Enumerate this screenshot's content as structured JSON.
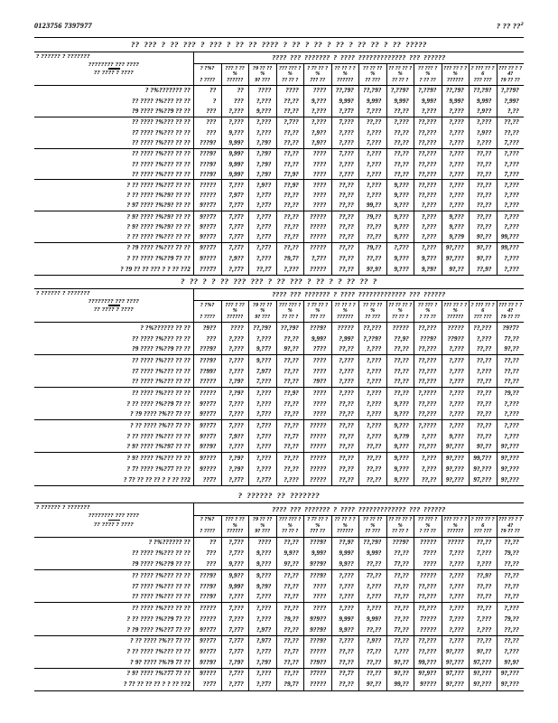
{
  "page": {
    "doc_id": "0123756 7397977",
    "page_label": "? ?? ??",
    "page_sup": "2"
  },
  "header": {
    "corner_l1": "? ?????? ? ???????",
    "corner_l2": "???????? ??? ????",
    "corner_l3": "?? ???? ? ????",
    "span": "???? ??? ??????? ? ???? ????????????? ??? ??????",
    "columns": [
      {
        "l1": "? ?%?",
        "l2": "? ????"
      },
      {
        "l1": "??? ? ?? %",
        "l2": "??????"
      },
      {
        "l1": "?9 ?? ?? %",
        "l2": "9? ???"
      },
      {
        "l1": "??? ??? ?%",
        "l2": "?? ?? ?"
      },
      {
        "l1": "? 7? ?? ?%",
        "l2": "7?? ??"
      },
      {
        "l1": "?? ?? ? ?%",
        "l2": "??????"
      },
      {
        "l1": "?? ?? ?? %",
        "l2": "?? ???"
      },
      {
        "l1": "?? ?? ?? ?%",
        "l2": "?? ?? ?"
      },
      {
        "l1": "?? ??? ? %",
        "l2": "? ?? ??"
      },
      {
        "l1": "??? ?? ? ?%",
        "l2": "??????"
      },
      {
        "l1": "? ??? ?? ? 6",
        "l2": "??? ???"
      },
      {
        "l1": "??? ?? ? ? 4?",
        "l2": "?9 ?? ??"
      }
    ]
  },
  "tables": [
    {
      "title": "?? ??? ? ?? ??? ? ??? ? ?? ?? ???? ? ?? ? ?? ? ?? ? ?? ?? ? ?? ?????",
      "rules_after": [
        3,
        6,
        9,
        12,
        15
      ],
      "rows": [
        {
          "label": "? ?%??????? ??",
          "values": [
            "??",
            "??",
            "????",
            "????",
            "????",
            "??,?9?",
            "??,?9?",
            "?,??9?",
            "?,??9?",
            "??,?9?",
            "??,?9?",
            "?,??9?"
          ]
        },
        {
          "label": "?? ???? ?%??? ?? ??",
          "values": [
            "?",
            "???",
            "?,???",
            "??,??",
            "9,???",
            "9,99?",
            "9,99?",
            "9,99?",
            "9,99?",
            "9,99?",
            "9,99?",
            "?,99?"
          ]
        },
        {
          "label": "?9 ???? ?%??9 ?? ??",
          "values": [
            "???",
            "?,???",
            "9,???",
            "??,??",
            "?,???",
            "?,?7?",
            "7,???",
            "??,??",
            "?,???",
            "?,???",
            "?,9??",
            "?,??"
          ]
        },
        {
          "label": "?? ???? ?%??? ?? ??",
          "values": [
            "???",
            "?,???",
            "?,???",
            "?,7??",
            "?,???",
            "7,???",
            "??,??",
            "?,???",
            "??,???",
            "?,???",
            "?,???",
            "??,??"
          ]
        },
        {
          "label": "?7 ???? ?%??? ?? ??",
          "values": [
            "???",
            "9,???",
            "?,???",
            "??,??",
            "?,9??",
            "?,???",
            "?,???",
            "??,??",
            "??,???",
            "?,???",
            "?,9??",
            "??,??"
          ]
        },
        {
          "label": "?? ???? ?%??? ?? ??",
          "values": [
            "???9?",
            "9,99?",
            "?,?9?",
            "??,??",
            "?,9??",
            "?,???",
            "7,???",
            "??,??",
            "??,???",
            "?,???",
            "?,???",
            "7,???"
          ]
        },
        {
          "label": "?? ???? ?%??? ?? ??",
          "values": [
            "???9?",
            "9,99?",
            "?,?9?",
            "??,??",
            "????",
            "7,???",
            "?,???",
            "??,??",
            "??,???",
            "?,???",
            "??,??",
            "?,???"
          ]
        },
        {
          "label": "?? ???? ?%??? ?? ??",
          "values": [
            "???9?",
            "9,99?",
            "?,?9?",
            "??,??",
            "????",
            "?,???",
            "?,???",
            "??,??",
            "??,???",
            "?,???",
            "??,??",
            "?,???"
          ]
        },
        {
          "label": "?? ???? ?%??? ?? ??",
          "values": [
            "???9?",
            "9,99?",
            "?,?9?",
            "7?,9?",
            "????",
            "?,???",
            "?,???",
            "??,??",
            "??,???",
            "?,???",
            "??,??",
            "7,???"
          ]
        },
        {
          "label": "? ?? ???? ?%??7 ?? ??",
          "values": [
            "?????",
            "7,???",
            "?,9??",
            "??,9?",
            "????",
            "??,??",
            "?,???",
            "9,???",
            "??,???",
            "?,???",
            "??,??",
            "?,???"
          ]
        },
        {
          "label": "? ?? ???? ?%?9? ?? ??",
          "values": [
            "?????",
            "7,97?",
            "?,?7?",
            "??,??",
            "????",
            "??,??",
            "?,???",
            "9,???",
            "??,???",
            "?,???",
            "??,??",
            "?,???"
          ]
        },
        {
          "label": "? 97 ???? ?%?9? ?? ??",
          "values": [
            "9??7?",
            "7,?7?",
            "?,?7?",
            "??,??",
            "????",
            "??,??",
            "99,??",
            "9,???",
            "?,???",
            "?,???",
            "??,??",
            "?,???"
          ]
        },
        {
          "label": "? 9? ???? ?%?9? ?? ??",
          "values": [
            "9??7?",
            "7,?7?",
            "?,?7?",
            "??,??",
            "?????",
            "??,??",
            "?9,??",
            "9,???",
            "?,???",
            "9,???",
            "??,??",
            "?,???"
          ]
        },
        {
          "label": "? 9? ???? ?%?9? ?? ??",
          "values": [
            "9??7?",
            "7,?7?",
            "?,?7?",
            "??,??",
            "?????",
            "??,??",
            "??,??",
            "9,???",
            "?,???",
            "9,???",
            "??,??",
            "?,???"
          ]
        },
        {
          "label": "? ?? ???? ?%??? ?? ??",
          "values": [
            "9??7?",
            "7,?7?",
            "?,?7?",
            "??,??",
            "?????",
            "??,??",
            "??,??",
            "9,???",
            "?,???",
            "9,??9",
            "9?,??",
            "99,???"
          ]
        },
        {
          "label": "? ?9 ???? ?%??? 7? ??",
          "values": [
            "9??7?",
            "7,?7?",
            "?,?7?",
            "??,??",
            "?????",
            "??,??",
            "?9,??",
            "?,7??",
            "?,???",
            "9?,???",
            "9?,??",
            "99,???"
          ]
        },
        {
          "label": "? ?? ???? ?%??9 7? ??",
          "values": [
            "9????",
            "?,9??",
            "?,???",
            "?9,7?",
            "?,7??",
            "??,??",
            "??,??",
            "9,???",
            "9,7??",
            "9?,???",
            "9?,??",
            "?,???"
          ]
        },
        {
          "label": "? ?9 ?? ?? ??? ? ? ?? ??2",
          "values": [
            "???7?",
            "?,?7?",
            "??,?7",
            "?,???",
            "?????",
            "??,??",
            "9?,9?",
            "9,???",
            "9,?9?",
            "9?,??",
            "??,9?",
            "?,???"
          ]
        }
      ]
    },
    {
      "title": "? ?? ? ? ?? ??? ??? ? ?? ??? ? ?? ? ? ?? ?? ?",
      "rules_after": [
        3,
        6,
        9,
        12
      ],
      "rows": [
        {
          "label": "? ?%?????? ?? ??",
          "values": [
            "?9??",
            "????",
            "??,?9?",
            "??,?9?",
            "???9?",
            "?????",
            "??,???",
            "?????",
            "??,???",
            "?????",
            "??,???",
            "?9?7?"
          ]
        },
        {
          "label": "?? ???? ?%??? ?? ??",
          "values": [
            "???",
            "?,???",
            "?,???",
            "??,??",
            "9,99?",
            "?,99?",
            "?,??9?",
            "??,9?",
            "???9?",
            "??9??",
            "?,???",
            "7?,??"
          ]
        },
        {
          "label": "?9 ???? ?%??9 ?? ??",
          "values": [
            "???9?",
            "?,???",
            "9,?7?",
            "9?,??",
            "?7??",
            "??,??",
            "?,???",
            "??,??",
            "??,???",
            "?,???",
            "??,??",
            "9?,??"
          ]
        },
        {
          "label": "?? ???? ?%??? ?? ??",
          "values": [
            "???9?",
            "?,???",
            "9,???",
            "??,??",
            "????",
            "?,???",
            "?,???",
            "??,??",
            "??,???",
            "?,???",
            "??,??",
            "??,??"
          ]
        },
        {
          "label": "?7 ???? ?%??? ?? ??",
          "values": [
            "??99?",
            "?,???",
            "7,97?",
            "??,??",
            "????",
            "?,???",
            "?,???",
            "??,??",
            "??,???",
            "?,???",
            "?,???",
            "??,??"
          ]
        },
        {
          "label": "?? ???? ?%??? ?? ??",
          "values": [
            "?????",
            "?,?9?",
            "7,???",
            "??,??",
            "?9??",
            "?,???",
            "?,???",
            "??,??",
            "??,???",
            "?,???",
            "??,??",
            "??,??"
          ]
        },
        {
          "label": "?? ???? ?%??? ?? ??",
          "values": [
            "?????",
            "?,?9?",
            "?,???",
            "??,9?",
            "????",
            "?,???",
            "?,???",
            "??,??",
            "?,????",
            "?,???",
            "??,??",
            "?9,??"
          ]
        },
        {
          "label": "? ?? ???? ?%??9 7? ??",
          "values": [
            "9??7?",
            "7,???",
            "?,???",
            "??,??",
            "????",
            "??,??",
            "?,???",
            "9,???",
            "??,???",
            "?,???",
            "??,??",
            "?,???"
          ]
        },
        {
          "label": "? ?9 ???? ?%?? 7? ??",
          "values": [
            "9??7?",
            "7,???",
            "?,7??",
            "??,??",
            "????",
            "??,??",
            "?,???",
            "9,???",
            "??,???",
            "?,???",
            "??,??",
            "?,???"
          ]
        },
        {
          "label": "? ?? ???? ?%?? 7? ??",
          "values": [
            "9??7?",
            "7,???",
            "?,7??",
            "??,??",
            "?????",
            "??,??",
            "?,???",
            "9,???",
            "?,????",
            "?,???",
            "??,??",
            "?,???"
          ]
        },
        {
          "label": "? ?? ???? ?%??? ?? ??",
          "values": [
            "9??7?",
            "7,9??",
            "?,7??",
            "??,7?",
            "?????",
            "??,??",
            "?,???",
            "9,??9",
            "?,???",
            "9,???",
            "??,??",
            "?,???"
          ]
        },
        {
          "label": "? 9? ???? ?%?97 ?? ??",
          "values": [
            "9??9?",
            "?,???",
            "?,???",
            "??,??",
            "?????",
            "??,??",
            "??,??",
            "9,???",
            "??,???",
            "9?,???",
            "9?,??",
            "9?,???"
          ]
        },
        {
          "label": "? 9? ???? ?%??? ?? ??",
          "values": [
            "9????",
            "?,?9?",
            "?,???",
            "??,??",
            "?????",
            "??,??",
            "??,??",
            "9,???",
            "?,???",
            "9?,???",
            "99,7??",
            "9?,???"
          ]
        },
        {
          "label": "? 7? ???? ?%?77 ?? ??",
          "values": [
            "9????",
            "?,?9?",
            "?,???",
            "??,??",
            "?????",
            "??,??",
            "??,??",
            "9,???",
            "?,???",
            "9?,???",
            "9?,???",
            "9?,???"
          ]
        },
        {
          "label": "? 7? ?? ?? ?? ? ? ?? ??2",
          "values": [
            "??7?",
            "?,?7?",
            "?,?7?",
            "?,???",
            "?????",
            "??,??",
            "??,??",
            "9,???",
            "??,??",
            "9?,???",
            "97,???",
            "9?,???"
          ]
        }
      ]
    },
    {
      "title": "? ?????? ?? ???????",
      "rules_after": [
        3,
        6,
        9,
        12
      ],
      "rows": [
        {
          "label": "? ?%?????? ??",
          "values": [
            "??",
            "?,7??",
            "????",
            "??,??",
            "???9?",
            "??,9?",
            "??,?9?",
            "???9?",
            "?????",
            "?????",
            "??,??",
            "??,??"
          ]
        },
        {
          "label": "?? ???? ?%??? ?? ??",
          "values": [
            "7??",
            "?,7??",
            "9,???",
            "9,9??",
            "9,99?",
            "9,99?",
            "9,99?",
            "??,??",
            "7???",
            "7,???",
            "7,???",
            "79,??"
          ]
        },
        {
          "label": "?9 ???? ?%??9 ?? ??",
          "values": [
            "???",
            "9,???",
            "9,???",
            "9?,??",
            "9??9?",
            "9,9??",
            "??,??",
            "7?,??",
            "????",
            "?,???",
            "?,???",
            "??,??"
          ]
        },
        {
          "label": "?? ???? ?%??? ?? ??",
          "values": [
            "???9?",
            "9,9??",
            "9,???",
            "??,??",
            "???9?",
            "?,???",
            "7?,??",
            "??,??",
            "?????",
            "?,???",
            "??,9?",
            "??,??"
          ]
        },
        {
          "label": "?7 ???? ?%??? ?? ??",
          "values": [
            "???9?",
            "9,99?",
            "9,?9?",
            "??,??",
            "????",
            "?,???",
            "?,???",
            "??,??",
            "??,???",
            "?,???",
            "??,??",
            "??,??"
          ]
        },
        {
          "label": "?? ???? ?%??? ?? ??",
          "values": [
            "???9?",
            "?,???",
            "7,???",
            "??,??",
            "????",
            "?,???",
            "?,???",
            "??,??",
            "??,???",
            "?,???",
            "??,??",
            "??,??"
          ]
        },
        {
          "label": "?? ???? ?%??? ?? ??",
          "values": [
            "?????",
            "7,???",
            "?,???",
            "??,??",
            "????",
            "?,???",
            "?,???",
            "??,??",
            "??,???",
            "?,???",
            "??,??",
            "?,???"
          ]
        },
        {
          "label": "? ?? ???? ?%??9 7? ??",
          "values": [
            "?????",
            "7,???",
            "?,???",
            "?9,??",
            "9?9??",
            "9,99?",
            "9,99?",
            "??,??",
            "7????",
            "7,???",
            "7,???",
            "79,??"
          ]
        },
        {
          "label": "? ?9 ???? ?%??7 7? ??",
          "values": [
            "9??7?",
            "7,?7?",
            "?,97?",
            "??,??",
            "9??9?",
            "9,9??",
            "??,??",
            "7?,??",
            "?????",
            "?,???",
            "?,???",
            "??,??"
          ]
        },
        {
          "label": "? ?? ???? ?%?? 7? ??",
          "values": [
            "9??7?",
            "7,?7?",
            "?,97?",
            "??,??",
            "???9?",
            "?,???",
            "?,9??",
            "??,??",
            "??,???",
            "?,???",
            "??,??",
            "??,??"
          ]
        },
        {
          "label": "? ?? ???? ?%??? ?? ??",
          "values": [
            "9??7?",
            "7,?7?",
            "?,?7?",
            "??,7?",
            "?????",
            "??,??",
            "?7,??",
            "?,???",
            "??,???",
            "9?,???",
            "9?,??",
            "?,???"
          ]
        },
        {
          "label": "? 9? ???? ?%?9 7? ??",
          "values": [
            "9??9?",
            "?,?9?",
            "?,?9?",
            "??,??",
            "??9??",
            "??,??",
            "??,??",
            "9?,??",
            "99,???",
            "9?,???",
            "97,???",
            "9?,9?"
          ]
        },
        {
          "label": "? 9? ???? ?%?77 7? ??",
          "values": [
            "9????",
            "?,7??",
            "?,???",
            "??,??",
            "?7???",
            "??,7?",
            "??,??",
            "9?,??",
            "9?,9??",
            "97,???",
            "9?,???",
            "9?,???"
          ]
        },
        {
          "label": "? 7? ?? ?? ?? ? ? ?? ??2",
          "values": [
            "??7?",
            "?,?7?",
            "?,?7?",
            "?9,7?",
            "?????",
            "??,??",
            "9?,??",
            "99,??",
            "9????",
            "9?,???",
            "9?,???",
            "9?,???"
          ]
        }
      ]
    }
  ]
}
